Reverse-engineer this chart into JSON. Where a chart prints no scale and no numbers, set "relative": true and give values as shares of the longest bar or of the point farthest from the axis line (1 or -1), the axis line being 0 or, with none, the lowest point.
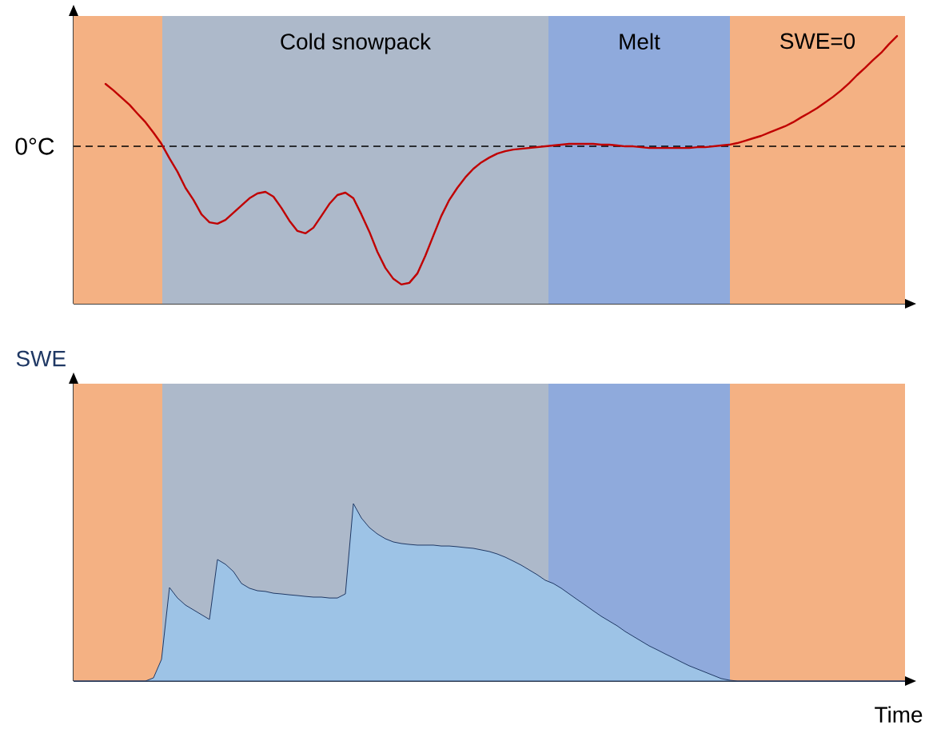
{
  "chart_data": [
    {
      "type": "line",
      "relative": true,
      "categories": [
        null,
        null,
        null,
        null,
        null,
        null,
        null,
        null,
        null,
        null,
        null,
        null,
        null,
        null,
        null,
        null,
        null,
        null,
        null,
        null,
        null,
        null,
        null,
        null,
        null,
        null,
        null,
        null,
        null,
        null,
        null,
        null,
        null,
        null,
        null,
        null,
        null,
        null,
        null,
        null,
        null,
        null,
        null,
        null,
        null,
        null,
        null,
        null,
        null,
        null,
        null,
        null,
        null,
        null,
        null,
        null,
        null,
        null,
        null,
        null,
        null,
        null,
        null,
        null,
        null,
        null,
        null,
        null,
        null,
        null,
        null,
        null,
        null,
        null,
        null,
        null,
        null,
        null,
        null,
        null,
        null,
        null,
        null,
        null,
        null,
        null,
        null,
        null,
        null,
        null,
        null,
        null,
        null,
        null,
        null,
        null,
        null,
        null,
        null,
        null,
        null,
        null,
        null,
        null,
        null
      ],
      "series": [
        {
          "color": "#c00000",
          "values": [
            null,
            null,
            null,
            null,
            0.821,
            0.797,
            0.77,
            0.743,
            0.71,
            0.678,
            0.639,
            0.597,
            0.543,
            0.493,
            0.433,
            0.388,
            0.334,
            0.304,
            0.299,
            0.313,
            0.34,
            0.367,
            0.394,
            0.412,
            0.418,
            0.4,
            0.358,
            0.31,
            0.272,
            0.263,
            0.284,
            0.328,
            0.373,
            0.406,
            0.415,
            0.394,
            0.334,
            0.269,
            0.194,
            0.134,
            0.093,
            0.072,
            0.078,
            0.113,
            0.179,
            0.254,
            0.328,
            0.388,
            0.433,
            0.472,
            0.504,
            0.528,
            0.546,
            0.561,
            0.57,
            0.576,
            0.579,
            0.582,
            0.585,
            0.588,
            0.591,
            0.594,
            0.597,
            0.597,
            0.597,
            0.597,
            0.594,
            0.594,
            0.591,
            0.588,
            0.588,
            0.585,
            0.582,
            0.582,
            0.582,
            0.582,
            0.582,
            0.582,
            0.585,
            0.585,
            0.588,
            0.591,
            0.594,
            0.6,
            0.609,
            0.618,
            0.627,
            0.639,
            0.651,
            0.663,
            0.678,
            0.696,
            0.713,
            0.731,
            0.752,
            0.773,
            0.797,
            0.824,
            0.854,
            0.881,
            0.91,
            0.937,
            0.97,
            1.0,
            null
          ]
        }
      ],
      "ref_lines": [
        {
          "axis": "y",
          "value": 0.588,
          "label": "0°C",
          "color": "#000000",
          "line_style": "dashed"
        }
      ],
      "annotations": [
        "Cold snowpack",
        "Melt",
        "SWE=0"
      ]
    },
    {
      "type": "area",
      "relative": true,
      "ylabel": "SWE",
      "xlabel": "Time",
      "categories": [
        null,
        null,
        null,
        null,
        null,
        null,
        null,
        null,
        null,
        null,
        null,
        null,
        null,
        null,
        null,
        null,
        null,
        null,
        null,
        null,
        null,
        null,
        null,
        null,
        null,
        null,
        null,
        null,
        null,
        null,
        null,
        null,
        null,
        null,
        null,
        null,
        null,
        null,
        null,
        null,
        null,
        null,
        null,
        null,
        null,
        null,
        null,
        null,
        null,
        null,
        null,
        null,
        null,
        null,
        null,
        null,
        null,
        null,
        null,
        null,
        null,
        null,
        null,
        null,
        null,
        null,
        null,
        null,
        null,
        null,
        null,
        null,
        null,
        null,
        null,
        null,
        null,
        null,
        null,
        null,
        null,
        null,
        null,
        null,
        null,
        null,
        null,
        null,
        null,
        null,
        null,
        null,
        null,
        null,
        null,
        null,
        null,
        null,
        null,
        null,
        null,
        null,
        null,
        null,
        null
      ],
      "series": [
        {
          "color": "#9dc3e6",
          "values": [
            0,
            0,
            0,
            0,
            0,
            0,
            0,
            0,
            0,
            0,
            0.018,
            0.122,
            0.527,
            0.468,
            0.428,
            0.401,
            0.374,
            0.347,
            0.685,
            0.658,
            0.617,
            0.55,
            0.523,
            0.509,
            0.505,
            0.495,
            0.491,
            0.486,
            0.482,
            0.477,
            0.473,
            0.473,
            0.468,
            0.468,
            0.491,
            1.0,
            0.919,
            0.865,
            0.829,
            0.802,
            0.784,
            0.775,
            0.77,
            0.766,
            0.766,
            0.766,
            0.761,
            0.761,
            0.757,
            0.752,
            0.748,
            0.739,
            0.73,
            0.716,
            0.698,
            0.676,
            0.653,
            0.626,
            0.599,
            0.568,
            0.55,
            0.523,
            0.491,
            0.459,
            0.428,
            0.396,
            0.365,
            0.338,
            0.311,
            0.279,
            0.252,
            0.225,
            0.198,
            0.176,
            0.153,
            0.131,
            0.108,
            0.086,
            0.068,
            0.05,
            0.032,
            0.014,
            0.005,
            0,
            0,
            0,
            0,
            0,
            0,
            0,
            0,
            0,
            0,
            0,
            0,
            0,
            0,
            0,
            0,
            0,
            0,
            0,
            0,
            0,
            0
          ]
        }
      ]
    }
  ]
}
